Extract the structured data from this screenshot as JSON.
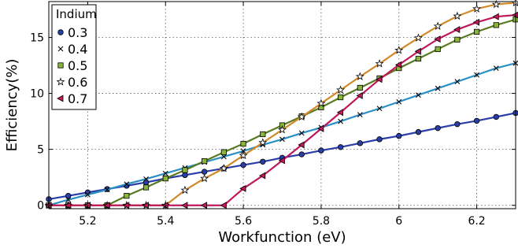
{
  "chart_data": {
    "type": "line",
    "title": "",
    "xlabel": "Workfunction (eV)",
    "ylabel": "Efficiency(%)",
    "xlim": [
      5.1,
      6.3
    ],
    "ylim": [
      -0.3,
      18.2
    ],
    "xticks": [
      5.2,
      5.4,
      5.6,
      5.8,
      6,
      6.2
    ],
    "xtick_labels": [
      "5.2",
      "5.4",
      "5.6",
      "5.8",
      "6",
      "6.2"
    ],
    "yticks": [
      0,
      5,
      10,
      15
    ],
    "ytick_labels": [
      "0",
      "5",
      "10",
      "15"
    ],
    "grid": true,
    "legend_title": "Indium",
    "legend_position": "top-left",
    "x": [
      5.1,
      5.15,
      5.2,
      5.25,
      5.3,
      5.35,
      5.4,
      5.45,
      5.5,
      5.55,
      5.6,
      5.65,
      5.7,
      5.75,
      5.8,
      5.85,
      5.9,
      5.95,
      6.0,
      6.05,
      6.1,
      6.15,
      6.2,
      6.25,
      6.3
    ],
    "series": [
      {
        "name": "0.3",
        "color": "#2a3ea8",
        "marker": "circle",
        "marker_color": "#2a3ea8",
        "values": [
          0.55,
          0.85,
          1.15,
          1.45,
          1.75,
          2.05,
          2.4,
          2.7,
          3.0,
          3.3,
          3.6,
          3.9,
          4.25,
          4.55,
          4.9,
          5.2,
          5.55,
          5.9,
          6.2,
          6.55,
          6.9,
          7.25,
          7.55,
          7.9,
          8.25
        ]
      },
      {
        "name": "0.4",
        "color": "#2a8fc4",
        "marker": "x",
        "marker_color": "#000000",
        "values": [
          0.0,
          0.5,
          0.95,
          1.4,
          1.9,
          2.35,
          2.85,
          3.35,
          3.85,
          4.35,
          4.85,
          5.4,
          5.9,
          6.45,
          6.95,
          7.5,
          8.1,
          8.65,
          9.25,
          9.85,
          10.45,
          11.05,
          11.65,
          12.25,
          12.7
        ]
      },
      {
        "name": "0.5",
        "color": "#5a7a22",
        "marker": "square",
        "marker_color": "#8ab43a",
        "values": [
          0.0,
          0.0,
          0.0,
          0.0,
          0.85,
          1.6,
          2.4,
          3.15,
          3.95,
          4.75,
          5.5,
          6.35,
          7.15,
          7.95,
          8.75,
          9.65,
          10.5,
          11.35,
          12.25,
          13.1,
          13.95,
          14.8,
          15.5,
          16.1,
          16.6
        ]
      },
      {
        "name": "0.6",
        "color": "#d08a2a",
        "marker": "star",
        "marker_color": "#ffffff",
        "values": [
          0.0,
          0.0,
          0.0,
          0.0,
          0.0,
          0.0,
          0.0,
          1.35,
          2.4,
          3.3,
          4.45,
          5.6,
          6.75,
          7.9,
          9.1,
          10.3,
          11.5,
          12.65,
          13.85,
          14.95,
          16.0,
          16.9,
          17.55,
          17.95,
          18.1
        ]
      },
      {
        "name": "0.7",
        "color": "#c0185a",
        "marker": "triangle-left",
        "marker_color": "#c0185a",
        "values": [
          0.0,
          0.0,
          0.0,
          0.0,
          0.0,
          0.0,
          0.0,
          0.0,
          0.0,
          0.0,
          1.5,
          2.65,
          4.0,
          5.4,
          6.85,
          8.3,
          9.8,
          11.25,
          12.55,
          13.75,
          14.85,
          15.7,
          16.35,
          16.85,
          17.0
        ]
      }
    ]
  }
}
